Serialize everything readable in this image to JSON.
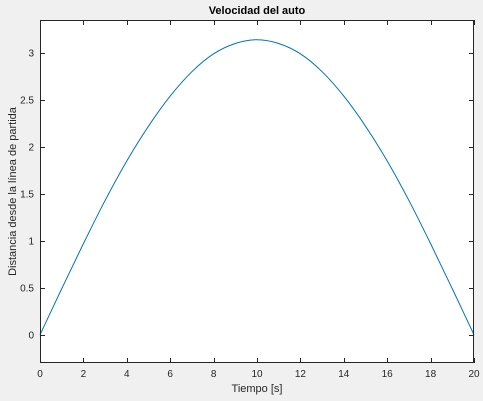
{
  "chart_data": {
    "type": "line",
    "title": "Velocidad del auto",
    "xlabel": "Tiempo [s]",
    "ylabel": "Distancia desde la línea de partida",
    "xlim": [
      0,
      20
    ],
    "ylim": [
      -0.3,
      3.35
    ],
    "xticks": [
      0,
      2,
      4,
      6,
      8,
      10,
      12,
      14,
      16,
      18,
      20
    ],
    "yticks": [
      0,
      0.5,
      1,
      1.5,
      2,
      2.5,
      3
    ],
    "ytick_labels": [
      "0",
      "0.5",
      "1",
      "1.5",
      "2",
      "2.5",
      "3"
    ],
    "grid": false,
    "series": [
      {
        "x": [
          0,
          1,
          2,
          3,
          4,
          5,
          6,
          7,
          8,
          9,
          10,
          11,
          12,
          13,
          14,
          15,
          16,
          17,
          18,
          19,
          20
        ],
        "y": [
          0,
          0.49,
          0.97,
          1.43,
          1.85,
          2.22,
          2.54,
          2.8,
          2.99,
          3.1,
          3.14,
          3.1,
          2.99,
          2.8,
          2.54,
          2.22,
          1.85,
          1.43,
          0.97,
          0.49,
          0
        ],
        "color": "#0072bd"
      }
    ]
  },
  "colors": {
    "figure_background": "#f0f0f0",
    "axes_background": "#ffffff",
    "axis_color": "#262626"
  }
}
